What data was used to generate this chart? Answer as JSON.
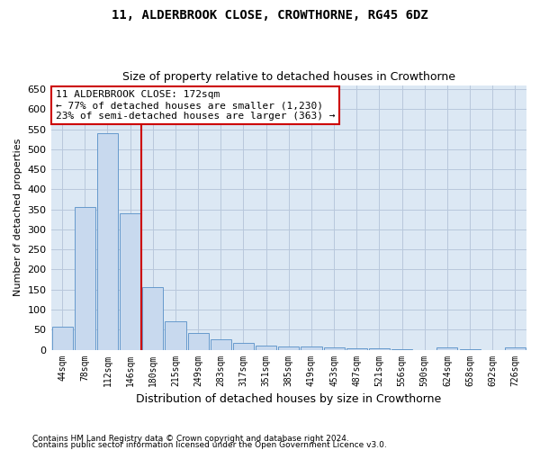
{
  "title": "11, ALDERBROOK CLOSE, CROWTHORNE, RG45 6DZ",
  "subtitle": "Size of property relative to detached houses in Crowthorne",
  "xlabel": "Distribution of detached houses by size in Crowthorne",
  "ylabel": "Number of detached properties",
  "footnote1": "Contains HM Land Registry data © Crown copyright and database right 2024.",
  "footnote2": "Contains public sector information licensed under the Open Government Licence v3.0.",
  "bar_color": "#c8d9ee",
  "bar_edge_color": "#6699cc",
  "grid_color": "#b8c8dc",
  "background_color": "#dce8f4",
  "vline_color": "#cc0000",
  "annotation_text": "11 ALDERBROOK CLOSE: 172sqm\n← 77% of detached houses are smaller (1,230)\n23% of semi-detached houses are larger (363) →",
  "annotation_box_color": "#ffffff",
  "annotation_box_edge": "#cc0000",
  "bin_labels": [
    "44sqm",
    "78sqm",
    "112sqm",
    "146sqm",
    "180sqm",
    "215sqm",
    "249sqm",
    "283sqm",
    "317sqm",
    "351sqm",
    "385sqm",
    "419sqm",
    "453sqm",
    "487sqm",
    "521sqm",
    "556sqm",
    "590sqm",
    "624sqm",
    "658sqm",
    "692sqm",
    "726sqm"
  ],
  "bar_heights": [
    58,
    355,
    540,
    340,
    157,
    70,
    42,
    25,
    17,
    10,
    8,
    8,
    5,
    3,
    3,
    1,
    0,
    5,
    1,
    0,
    5
  ],
  "ylim": [
    0,
    660
  ],
  "yticks": [
    0,
    50,
    100,
    150,
    200,
    250,
    300,
    350,
    400,
    450,
    500,
    550,
    600,
    650
  ]
}
